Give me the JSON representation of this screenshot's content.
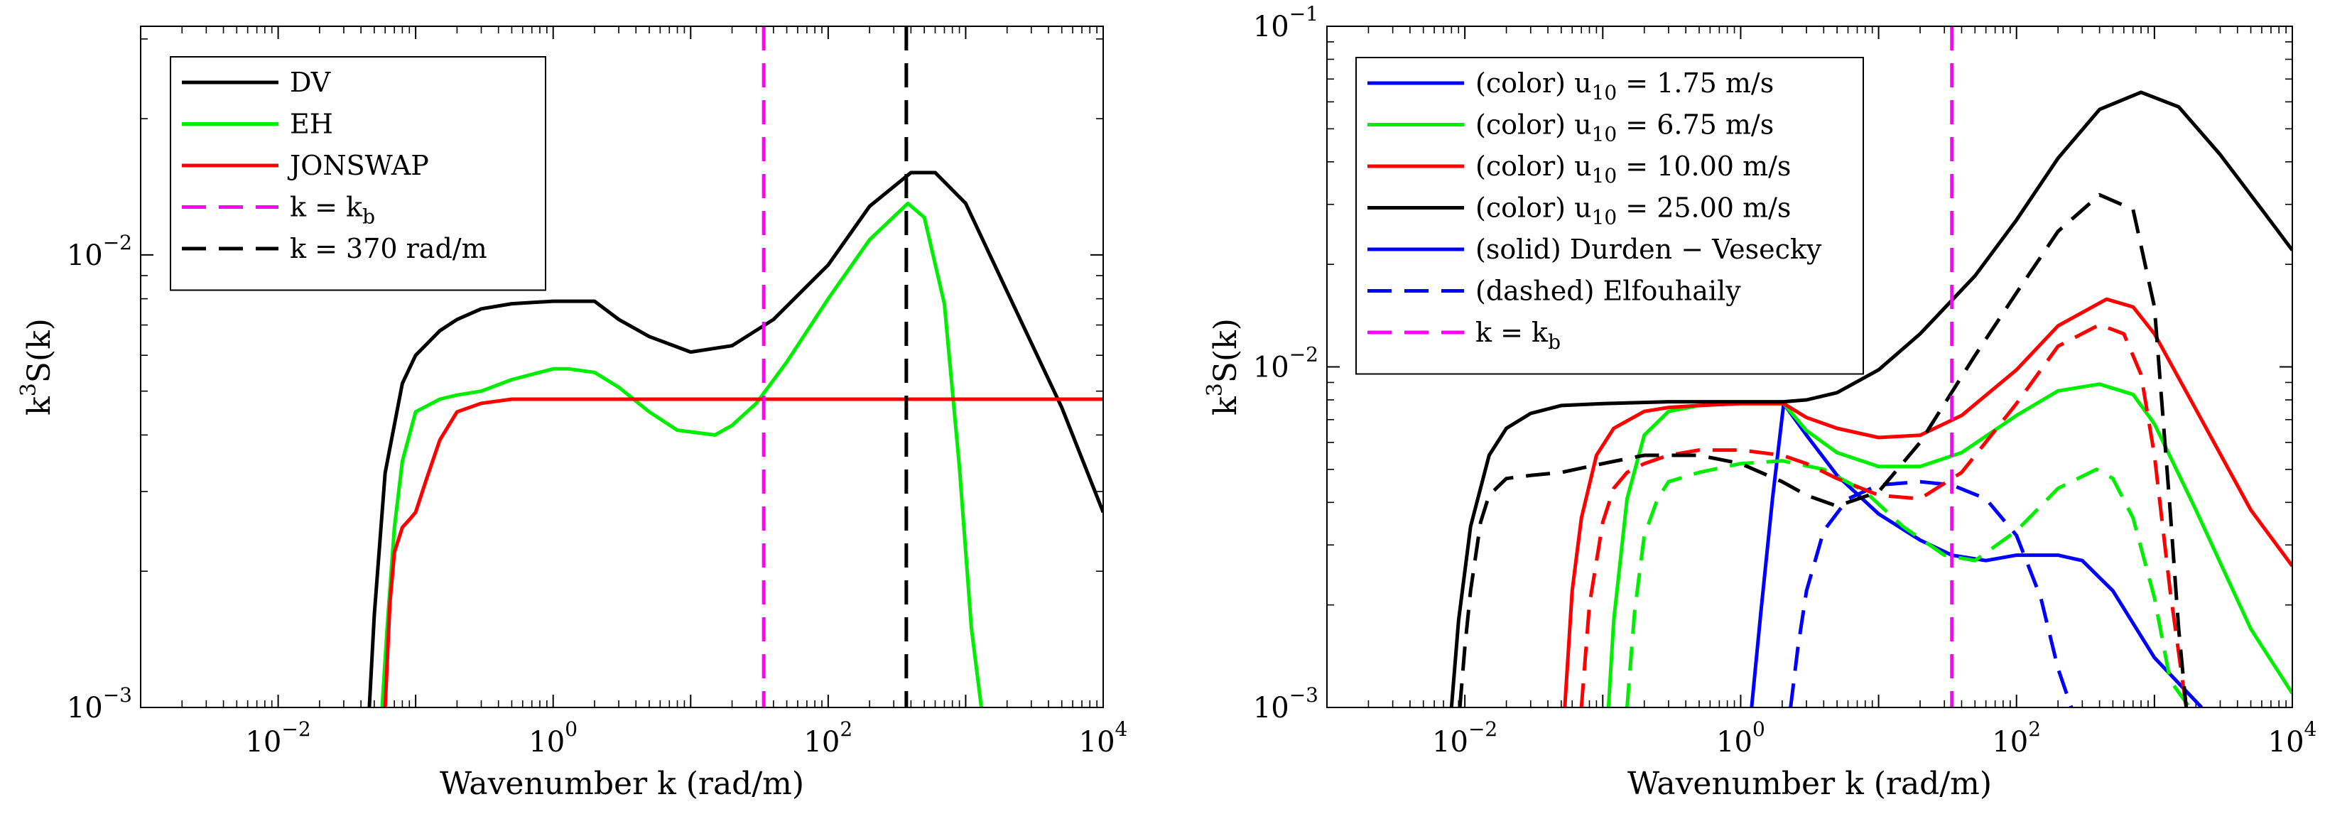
{
  "chart_data": [
    {
      "type": "line",
      "scale": {
        "x": "log",
        "y": "log"
      },
      "xlim": [
        0.001,
        10000
      ],
      "ylim": [
        0.001,
        0.032
      ],
      "xticks": [
        0.01,
        1,
        100,
        10000
      ],
      "xtick_labels": [
        {
          "base": "10",
          "exp": "−2"
        },
        {
          "base": "10",
          "exp": "0"
        },
        {
          "base": "10",
          "exp": "2"
        },
        {
          "base": "10",
          "exp": "4"
        }
      ],
      "yticks": [
        0.001,
        0.01
      ],
      "ytick_labels": [
        {
          "base": "10",
          "exp": "−3"
        },
        {
          "base": "10",
          "exp": "−2"
        }
      ],
      "xlabel": "Wavenumber k (rad/m)",
      "ylabel": {
        "main": "k",
        "sup": "3",
        "rest": "S(k)"
      },
      "legend_position": "top-left",
      "legend": [
        {
          "text": "DV",
          "sub": "",
          "tail": "",
          "color": "#000000",
          "dash": "solid"
        },
        {
          "text": "EH",
          "sub": "",
          "tail": "",
          "color": "#00ee00",
          "dash": "solid"
        },
        {
          "text": "JONSWAP",
          "sub": "",
          "tail": "",
          "color": "#ff0000",
          "dash": "solid"
        },
        {
          "text": "k = k",
          "sub": "b",
          "tail": "",
          "color": "#ff00ff",
          "dash": "dashed"
        },
        {
          "text": "k  =  370 rad/m",
          "sub": "",
          "tail": "",
          "color": "#000000",
          "dash": "dashed"
        }
      ],
      "vlines": [
        {
          "x": 34,
          "color": "#ff00ff"
        },
        {
          "x": 370,
          "color": "#000000"
        }
      ],
      "series": [
        {
          "name": "DV",
          "color": "#000000",
          "dash": "solid",
          "x": [
            0.046,
            0.05,
            0.06,
            0.08,
            0.1,
            0.15,
            0.2,
            0.3,
            0.5,
            1,
            2,
            3,
            5,
            10,
            20,
            40,
            100,
            200,
            400,
            600,
            1000,
            2000,
            5000,
            10000
          ],
          "y": [
            0.001,
            0.0016,
            0.0033,
            0.0052,
            0.006,
            0.0068,
            0.0072,
            0.0076,
            0.0078,
            0.0079,
            0.0079,
            0.0072,
            0.0066,
            0.0061,
            0.0063,
            0.0072,
            0.0095,
            0.0128,
            0.0152,
            0.0152,
            0.013,
            0.0083,
            0.0046,
            0.0027
          ]
        },
        {
          "name": "EH",
          "color": "#00ee00",
          "dash": "solid",
          "x": [
            0.057,
            0.062,
            0.07,
            0.08,
            0.1,
            0.15,
            0.2,
            0.3,
            0.5,
            1,
            1.3,
            2,
            3,
            5,
            8,
            15,
            20,
            30,
            50,
            100,
            200,
            380,
            500,
            700,
            900,
            1100,
            1300
          ],
          "y": [
            0.001,
            0.0015,
            0.0025,
            0.0035,
            0.0045,
            0.0048,
            0.0049,
            0.005,
            0.0053,
            0.0056,
            0.0056,
            0.0055,
            0.0051,
            0.0045,
            0.0041,
            0.004,
            0.0042,
            0.0047,
            0.0058,
            0.008,
            0.0108,
            0.013,
            0.0121,
            0.0078,
            0.0034,
            0.0015,
            0.001
          ]
        },
        {
          "name": "JONSWAP",
          "color": "#ff0000",
          "dash": "solid",
          "x": [
            0.06,
            0.065,
            0.07,
            0.08,
            0.09,
            0.1,
            0.12,
            0.15,
            0.2,
            0.3,
            0.5,
            1,
            10,
            100,
            1000,
            10000
          ],
          "y": [
            0.001,
            0.0017,
            0.0022,
            0.0025,
            0.0026,
            0.0027,
            0.0032,
            0.0039,
            0.0045,
            0.0047,
            0.0048,
            0.0048,
            0.0048,
            0.0048,
            0.0048,
            0.0048
          ]
        }
      ]
    },
    {
      "type": "line",
      "scale": {
        "x": "log",
        "y": "log"
      },
      "xlim": [
        0.001,
        10000
      ],
      "ylim": [
        0.001,
        0.1
      ],
      "xticks": [
        0.01,
        1,
        100,
        10000
      ],
      "xtick_labels": [
        {
          "base": "10",
          "exp": "−2"
        },
        {
          "base": "10",
          "exp": "0"
        },
        {
          "base": "10",
          "exp": "2"
        },
        {
          "base": "10",
          "exp": "4"
        }
      ],
      "yticks": [
        0.001,
        0.01,
        0.1
      ],
      "ytick_labels": [
        {
          "base": "10",
          "exp": "−3"
        },
        {
          "base": "10",
          "exp": "−2"
        },
        {
          "base": "10",
          "exp": "−1"
        }
      ],
      "xlabel": "Wavenumber k (rad/m)",
      "ylabel": {
        "main": "k",
        "sup": "3",
        "rest": "S(k)"
      },
      "legend_position": "top-left",
      "legend": [
        {
          "text": "(color) u",
          "sub": "10",
          "tail": "  =  1.75 m/s",
          "color": "#0000ff",
          "dash": "solid"
        },
        {
          "text": "(color) u",
          "sub": "10",
          "tail": "  =  6.75 m/s",
          "color": "#00ee00",
          "dash": "solid"
        },
        {
          "text": "(color) u",
          "sub": "10",
          "tail": "  =  10.00 m/s",
          "color": "#ff0000",
          "dash": "solid"
        },
        {
          "text": "(color) u",
          "sub": "10",
          "tail": "  =  25.00 m/s",
          "color": "#000000",
          "dash": "solid"
        },
        {
          "text": "(solid) Durden − Vesecky",
          "sub": "",
          "tail": "",
          "color": "#0000ff",
          "dash": "solid"
        },
        {
          "text": "(dashed) Elfouhaily",
          "sub": "",
          "tail": "",
          "color": "#0000ff",
          "dash": "dashed"
        },
        {
          "text": "k  =  k",
          "sub": "b",
          "tail": "",
          "color": "#ff00ff",
          "dash": "dashed"
        }
      ],
      "vlines": [
        {
          "x": 34,
          "color": "#ff00ff"
        }
      ],
      "series": [
        {
          "name": "DV u10=1.75",
          "color": "#0000ff",
          "dash": "solid",
          "x": [
            1.2,
            1.4,
            1.7,
            2.05,
            3,
            5,
            10,
            20,
            34,
            60,
            100,
            200,
            300,
            500,
            1000,
            2200
          ],
          "y": [
            0.001,
            0.0019,
            0.0041,
            0.0078,
            0.0063,
            0.0048,
            0.0037,
            0.0031,
            0.0028,
            0.0027,
            0.0028,
            0.0028,
            0.0027,
            0.0022,
            0.0014,
            0.001
          ]
        },
        {
          "name": "EH u10=1.75",
          "color": "#0000ff",
          "dash": "dashed",
          "x": [
            2.3,
            2.6,
            3,
            4,
            6,
            10,
            20,
            34,
            60,
            100,
            150,
            200,
            250
          ],
          "y": [
            0.001,
            0.0015,
            0.0022,
            0.0033,
            0.0041,
            0.0045,
            0.0046,
            0.0045,
            0.0041,
            0.0032,
            0.0021,
            0.0013,
            0.001
          ]
        },
        {
          "name": "DV u10=6.75",
          "color": "#00ee00",
          "dash": "solid",
          "x": [
            0.11,
            0.12,
            0.15,
            0.2,
            0.3,
            0.5,
            1,
            2.05,
            3,
            5,
            10,
            20,
            40,
            100,
            200,
            400,
            700,
            1000,
            2000,
            5000,
            10000
          ],
          "y": [
            0.001,
            0.0018,
            0.0041,
            0.0063,
            0.0074,
            0.0077,
            0.0078,
            0.0078,
            0.0065,
            0.0056,
            0.0051,
            0.0051,
            0.0056,
            0.0072,
            0.0085,
            0.0089,
            0.0083,
            0.0068,
            0.0038,
            0.0017,
            0.0011
          ]
        },
        {
          "name": "EH u10=6.75",
          "color": "#00ee00",
          "dash": "dashed",
          "x": [
            0.15,
            0.17,
            0.2,
            0.25,
            0.3,
            0.5,
            1,
            2,
            4,
            8,
            15,
            30,
            50,
            100,
            200,
            380,
            500,
            700,
            1000,
            1300,
            1800
          ],
          "y": [
            0.001,
            0.0019,
            0.0032,
            0.0041,
            0.0046,
            0.0049,
            0.0052,
            0.0053,
            0.005,
            0.0043,
            0.0034,
            0.0028,
            0.0027,
            0.0033,
            0.0044,
            0.005,
            0.0047,
            0.0036,
            0.0021,
            0.0012,
            0.001
          ]
        },
        {
          "name": "DV u10=10",
          "color": "#ff0000",
          "dash": "solid",
          "x": [
            0.053,
            0.06,
            0.07,
            0.09,
            0.12,
            0.2,
            0.3,
            0.5,
            1,
            2.05,
            3,
            5,
            10,
            20,
            40,
            100,
            200,
            450,
            700,
            1000,
            2000,
            5000,
            10000
          ],
          "y": [
            0.001,
            0.0022,
            0.0036,
            0.0055,
            0.0066,
            0.0074,
            0.0076,
            0.0077,
            0.0078,
            0.0078,
            0.0071,
            0.0066,
            0.0062,
            0.0063,
            0.0072,
            0.0098,
            0.0132,
            0.0158,
            0.015,
            0.0125,
            0.0075,
            0.0038,
            0.0026
          ]
        },
        {
          "name": "EH u10=10",
          "color": "#ff0000",
          "dash": "dashed",
          "x": [
            0.07,
            0.08,
            0.1,
            0.12,
            0.15,
            0.2,
            0.3,
            0.5,
            1,
            2,
            3,
            5,
            10,
            20,
            40,
            100,
            200,
            400,
            600,
            800,
            1000,
            1300,
            1700
          ],
          "y": [
            0.001,
            0.002,
            0.0035,
            0.0044,
            0.0049,
            0.0052,
            0.0055,
            0.0057,
            0.0057,
            0.0055,
            0.0052,
            0.0047,
            0.0042,
            0.0041,
            0.0049,
            0.0078,
            0.0115,
            0.0133,
            0.0125,
            0.0095,
            0.0055,
            0.0022,
            0.001
          ]
        },
        {
          "name": "DV u10=25",
          "color": "#000000",
          "dash": "solid",
          "x": [
            0.008,
            0.009,
            0.011,
            0.015,
            0.02,
            0.03,
            0.05,
            0.1,
            0.3,
            1,
            2.05,
            3,
            5,
            10,
            20,
            50,
            100,
            200,
            400,
            800,
            1500,
            3000,
            6000,
            10000
          ],
          "y": [
            0.001,
            0.0018,
            0.0034,
            0.0055,
            0.0066,
            0.0073,
            0.0077,
            0.0078,
            0.0079,
            0.0079,
            0.0079,
            0.008,
            0.0084,
            0.0098,
            0.0125,
            0.0185,
            0.027,
            0.041,
            0.057,
            0.064,
            0.058,
            0.042,
            0.029,
            0.022
          ]
        },
        {
          "name": "EH u10=25",
          "color": "#000000",
          "dash": "dashed",
          "x": [
            0.0092,
            0.01,
            0.011,
            0.013,
            0.015,
            0.02,
            0.03,
            0.05,
            0.1,
            0.2,
            0.5,
            1,
            2,
            3,
            5,
            10,
            20,
            50,
            100,
            200,
            400,
            700,
            1000,
            1300,
            1500,
            1700
          ],
          "y": [
            0.001,
            0.0015,
            0.0022,
            0.0035,
            0.0042,
            0.0047,
            0.0048,
            0.0049,
            0.0052,
            0.0055,
            0.0055,
            0.0052,
            0.0046,
            0.0042,
            0.0039,
            0.0043,
            0.006,
            0.0108,
            0.0165,
            0.025,
            0.032,
            0.029,
            0.015,
            0.0038,
            0.0017,
            0.001
          ]
        }
      ]
    }
  ]
}
